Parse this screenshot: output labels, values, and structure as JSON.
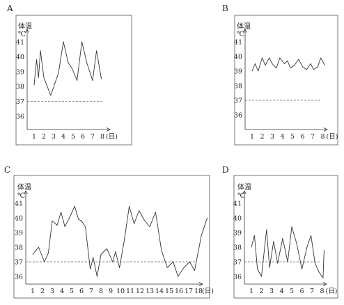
{
  "chart_data": [
    {
      "type": "line",
      "panel_label": "A",
      "ylabel": "体温",
      "yunit": "℃",
      "xunit": "(日)",
      "categories": [
        "1",
        "2",
        "3",
        "4",
        "5",
        "6",
        "7",
        "8"
      ],
      "yticks": [
        "36",
        "37",
        "38",
        "39",
        "40",
        "41"
      ],
      "ylim": [
        35.7,
        41.2
      ],
      "reference_line": 37,
      "x": [
        1,
        1.25,
        1.45,
        1.65,
        2.0,
        2.7,
        3.5,
        4.0,
        4.5,
        4.9,
        5.4,
        5.9,
        6.4,
        7.0,
        7.4,
        7.9
      ],
      "values": [
        38.1,
        39.8,
        38.6,
        40.4,
        38.6,
        37.4,
        38.9,
        41.0,
        39.6,
        39.2,
        38.4,
        41.0,
        39.6,
        38.4,
        40.4,
        38.5
      ]
    },
    {
      "type": "line",
      "panel_label": "B",
      "ylabel": "体温",
      "yunit": "℃",
      "xunit": "(日)",
      "categories": [
        "1",
        "2",
        "3",
        "4",
        "5",
        "6",
        "7",
        "8"
      ],
      "yticks": [
        "36",
        "37",
        "38",
        "39",
        "40",
        "41"
      ],
      "ylim": [
        35.7,
        41.2
      ],
      "reference_line": 37,
      "x": [
        1,
        1.3,
        1.6,
        2.0,
        2.3,
        2.7,
        3.0,
        3.4,
        3.75,
        4.2,
        4.5,
        4.8,
        5.2,
        5.6,
        6.0,
        6.4,
        6.8,
        7.1,
        7.5,
        7.8,
        8.2
      ],
      "values": [
        39.0,
        39.5,
        39.0,
        39.9,
        39.4,
        39.9,
        39.5,
        39.2,
        39.9,
        39.5,
        39.7,
        39.2,
        39.4,
        39.8,
        39.3,
        39.1,
        39.5,
        39.1,
        39.3,
        39.9,
        39.4
      ]
    },
    {
      "type": "line",
      "panel_label": "C",
      "ylabel": "体温",
      "yunit": "℃",
      "xunit": "(日)",
      "categories": [
        "1",
        "2",
        "3",
        "4",
        "5",
        "6",
        "7",
        "8",
        "9",
        "10",
        "11",
        "12",
        "13",
        "14",
        "15",
        "16",
        "17",
        "18"
      ],
      "yticks": [
        "36",
        "37",
        "38",
        "39",
        "40",
        "41"
      ],
      "ylim": [
        35.7,
        41.2
      ],
      "reference_line": 37,
      "x": [
        1,
        1.6,
        2.2,
        2.6,
        3.0,
        3.5,
        3.9,
        4.3,
        4.9,
        5.3,
        5.7,
        6.0,
        6.4,
        6.9,
        7.2,
        7.6,
        8.0,
        8.6,
        9.2,
        9.5,
        9.9,
        10.4,
        10.9,
        11.4,
        11.9,
        12.4,
        13.0,
        13.6,
        14.2,
        14.8,
        15.4,
        15.9,
        16.5,
        17.1,
        17.6,
        18.3,
        18.9
      ],
      "values": [
        37.5,
        38.0,
        37.0,
        37.6,
        39.8,
        39.5,
        40.4,
        39.4,
        40.2,
        40.8,
        39.9,
        39.8,
        39.4,
        36.5,
        37.3,
        36.0,
        37.5,
        37.9,
        37.0,
        37.7,
        36.6,
        38.5,
        40.8,
        39.6,
        40.5,
        39.9,
        39.4,
        40.4,
        37.8,
        36.6,
        37.0,
        36.0,
        36.6,
        37.0,
        36.4,
        38.8,
        40.0
      ]
    },
    {
      "type": "line",
      "panel_label": "D",
      "ylabel": "体温",
      "yunit": "℃",
      "xunit": "(日)",
      "categories": [
        "1",
        "2",
        "3",
        "4",
        "5",
        "6",
        "7",
        "8"
      ],
      "yticks": [
        "36",
        "37",
        "38",
        "39",
        "40",
        "41"
      ],
      "ylim": [
        35.7,
        41.2
      ],
      "reference_line": 37,
      "x": [
        1,
        1.3,
        1.6,
        2.0,
        2.5,
        2.8,
        3.2,
        3.6,
        4.1,
        4.6,
        5.0,
        5.5,
        6.0,
        6.5,
        6.9,
        7.3,
        7.7,
        8.1,
        8.2
      ],
      "values": [
        38.0,
        38.8,
        36.5,
        36.0,
        39.2,
        36.6,
        38.4,
        36.9,
        38.6,
        37.0,
        39.4,
        38.2,
        36.5,
        38.0,
        38.8,
        36.9,
        36.3,
        35.9,
        37.8
      ]
    }
  ]
}
